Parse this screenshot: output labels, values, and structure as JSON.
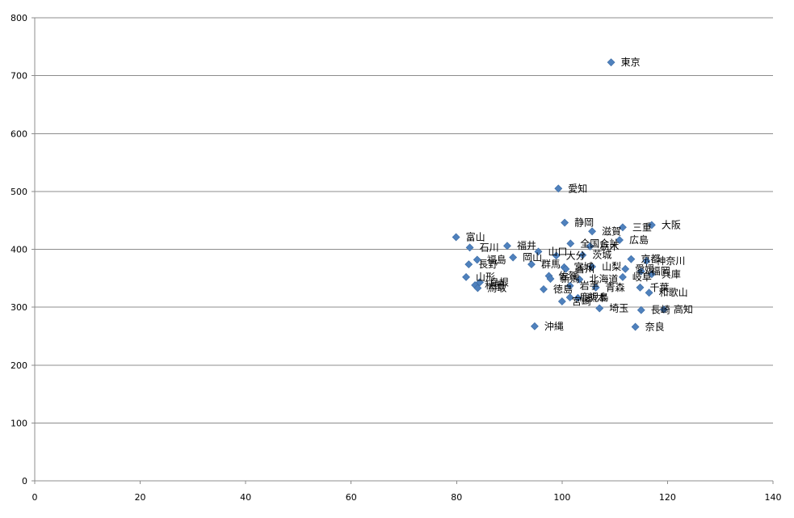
{
  "chart_data": {
    "type": "scatter",
    "title": "",
    "xlabel": "",
    "ylabel": "",
    "xlim": [
      0,
      140
    ],
    "ylim": [
      0,
      800
    ],
    "x_ticks": [
      "0",
      "20",
      "40",
      "60",
      "80",
      "100",
      "120",
      "140"
    ],
    "y_ticks": [
      "0",
      "100",
      "200",
      "300",
      "400",
      "500",
      "600",
      "700",
      "800"
    ],
    "grid": "horizontal",
    "legend": "none",
    "marker": "diamond",
    "marker_color": "#4F81BD",
    "points": [
      {
        "label": "東京",
        "x": 109.3,
        "y": 723
      },
      {
        "label": "愛知",
        "x": 99.3,
        "y": 505
      },
      {
        "label": "静岡",
        "x": 100.5,
        "y": 446
      },
      {
        "label": "大阪",
        "x": 117.0,
        "y": 442
      },
      {
        "label": "三重",
        "x": 111.5,
        "y": 438
      },
      {
        "label": "滋賀",
        "x": 105.7,
        "y": 431
      },
      {
        "label": "富山",
        "x": 79.9,
        "y": 421
      },
      {
        "label": "広島",
        "x": 110.9,
        "y": 416
      },
      {
        "label": "全国合計",
        "x": 101.6,
        "y": 410
      },
      {
        "label": "福井",
        "x": 89.6,
        "y": 406
      },
      {
        "label": "栃木",
        "x": 105.3,
        "y": 405
      },
      {
        "label": "石川",
        "x": 82.5,
        "y": 403
      },
      {
        "label": "山口",
        "x": 95.5,
        "y": 396
      },
      {
        "label": "茨城",
        "x": 103.9,
        "y": 390
      },
      {
        "label": "大分",
        "x": 98.9,
        "y": 389
      },
      {
        "label": "岡山",
        "x": 90.7,
        "y": 386
      },
      {
        "label": "京都",
        "x": 113.1,
        "y": 383
      },
      {
        "label": "福島",
        "x": 83.9,
        "y": 382
      },
      {
        "label": "神奈川",
        "x": 116.0,
        "y": 380
      },
      {
        "label": "群馬",
        "x": 94.2,
        "y": 374
      },
      {
        "label": "長野",
        "x": 82.3,
        "y": 374
      },
      {
        "label": "山梨",
        "x": 105.7,
        "y": 370
      },
      {
        "label": "宮城",
        "x": 100.4,
        "y": 369
      },
      {
        "label": "香川",
        "x": 100.7,
        "y": 366
      },
      {
        "label": "愛媛",
        "x": 112.0,
        "y": 366
      },
      {
        "label": "福岡",
        "x": 115.0,
        "y": 362
      },
      {
        "label": "岐阜",
        "x": 111.5,
        "y": 352
      },
      {
        "label": "兵庫",
        "x": 117.0,
        "y": 357
      },
      {
        "label": "佐賀",
        "x": 97.5,
        "y": 354
      },
      {
        "label": "山形",
        "x": 81.8,
        "y": 352
      },
      {
        "label": "北海道",
        "x": 103.3,
        "y": 348
      },
      {
        "label": "新潟",
        "x": 97.8,
        "y": 349
      },
      {
        "label": "島根",
        "x": 84.4,
        "y": 343
      },
      {
        "label": "秋田",
        "x": 83.5,
        "y": 338
      },
      {
        "label": "岩手",
        "x": 101.5,
        "y": 337
      },
      {
        "label": "青森",
        "x": 106.4,
        "y": 334
      },
      {
        "label": "徳島",
        "x": 96.5,
        "y": 331
      },
      {
        "label": "鳥取",
        "x": 84.0,
        "y": 333
      },
      {
        "label": "千葉",
        "x": 114.8,
        "y": 334
      },
      {
        "label": "和歌山",
        "x": 116.5,
        "y": 325
      },
      {
        "label": "熊本",
        "x": 103.0,
        "y": 316
      },
      {
        "label": "鹿児島",
        "x": 101.5,
        "y": 317
      },
      {
        "label": "宮崎",
        "x": 100.0,
        "y": 310
      },
      {
        "label": "埼玉",
        "x": 107.1,
        "y": 298
      },
      {
        "label": "長崎",
        "x": 115.0,
        "y": 295
      },
      {
        "label": "高知",
        "x": 119.3,
        "y": 296
      },
      {
        "label": "沖縄",
        "x": 94.8,
        "y": 267
      },
      {
        "label": "奈良",
        "x": 113.9,
        "y": 266
      }
    ]
  }
}
